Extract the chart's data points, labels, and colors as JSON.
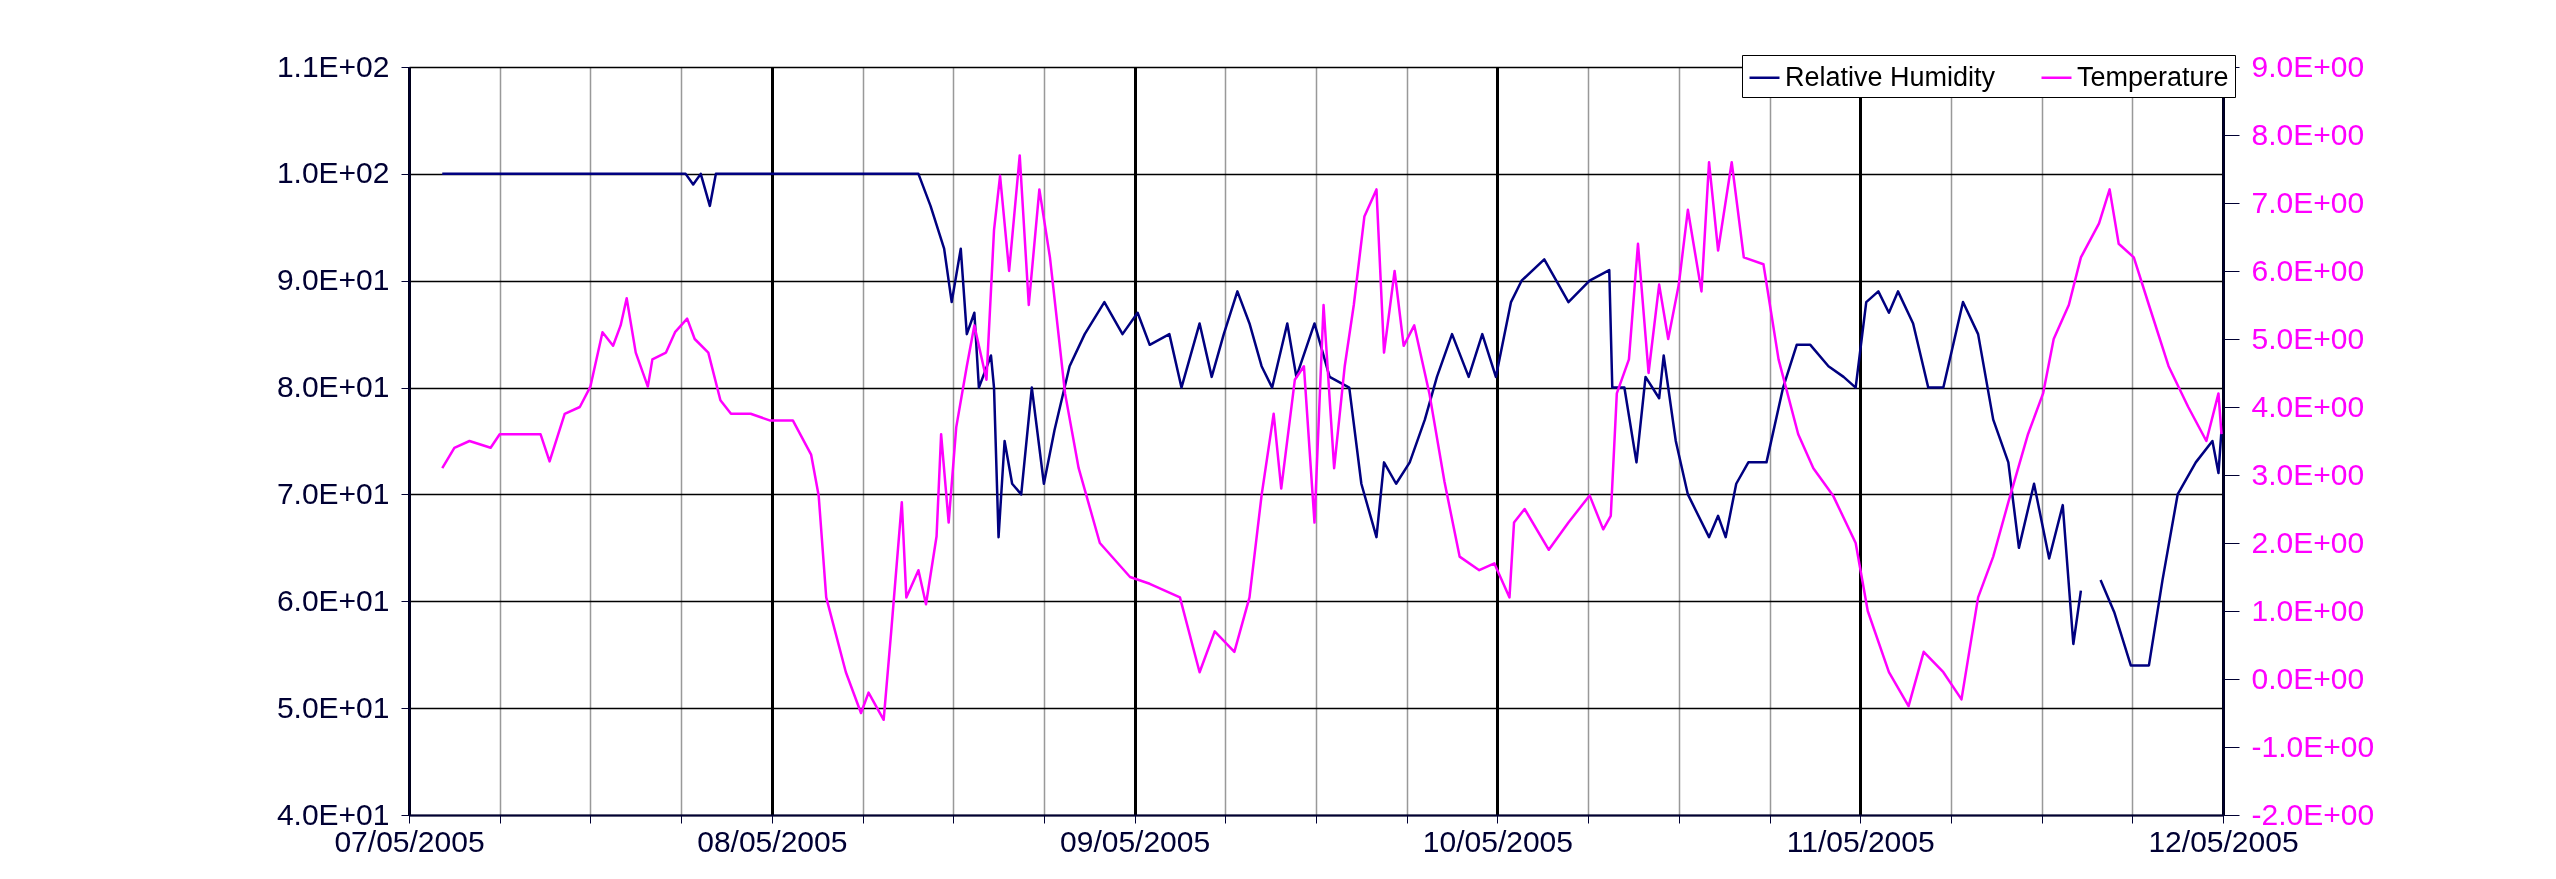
{
  "chart_data": {
    "type": "line",
    "grid": true,
    "legend": "top right",
    "xlim": [
      "2005-05-07",
      "2005-05-12"
    ],
    "xticks": [
      {
        "value": "2005-05-07",
        "label": "07/05/2005"
      },
      {
        "value": "2005-05-07T06:00",
        "label": null
      },
      {
        "value": "2005-05-07T12:00",
        "label": null
      },
      {
        "value": "2005-05-07T18:00",
        "label": null
      },
      {
        "value": "2005-05-08",
        "label": "08/05/2005"
      },
      {
        "value": "2005-05-08T06:00",
        "label": null
      },
      {
        "value": "2005-05-08T12:00",
        "label": null
      },
      {
        "value": "2005-05-08T18:00",
        "label": null
      },
      {
        "value": "2005-05-09",
        "label": "09/05/2005"
      },
      {
        "value": "2005-05-09T06:00",
        "label": null
      },
      {
        "value": "2005-05-09T12:00",
        "label": null
      },
      {
        "value": "2005-05-09T18:00",
        "label": null
      },
      {
        "value": "2005-05-10",
        "label": "10/05/2005"
      },
      {
        "value": "2005-05-10T06:00",
        "label": null
      },
      {
        "value": "2005-05-10T12:00",
        "label": null
      },
      {
        "value": "2005-05-10T18:00",
        "label": null
      },
      {
        "value": "2005-05-11",
        "label": "11/05/2005"
      },
      {
        "value": "2005-05-11T06:00",
        "label": null
      },
      {
        "value": "2005-05-11T12:00",
        "label": null
      },
      {
        "value": "2005-05-11T18:00",
        "label": null
      },
      {
        "value": "2005-05-12",
        "label": "12/05/2005"
      }
    ],
    "ylim": [
      40,
      110
    ],
    "yticks": [
      {
        "value": 40,
        "label": "4.0E+01"
      },
      {
        "value": 50,
        "label": "5.0E+01"
      },
      {
        "value": 60,
        "label": "6.0E+01"
      },
      {
        "value": 70,
        "label": "7.0E+01"
      },
      {
        "value": 80,
        "label": "8.0E+01"
      },
      {
        "value": 90,
        "label": "9.0E+01"
      },
      {
        "value": 100,
        "label": "1.0E+02"
      },
      {
        "value": 110,
        "label": "1.1E+02"
      }
    ],
    "y2lim": [
      -2,
      9
    ],
    "y2ticks": [
      {
        "value": -2,
        "label": "-2.0E+00"
      },
      {
        "value": -1,
        "label": "-1.0E+00"
      },
      {
        "value": 0,
        "label": "0.0E+00"
      },
      {
        "value": 1,
        "label": "1.0E+00"
      },
      {
        "value": 2,
        "label": "2.0E+00"
      },
      {
        "value": 3,
        "label": "3.0E+00"
      },
      {
        "value": 4,
        "label": "4.0E+00"
      },
      {
        "value": 5,
        "label": "5.0E+00"
      },
      {
        "value": 6,
        "label": "6.0E+00"
      },
      {
        "value": 7,
        "label": "7.0E+00"
      },
      {
        "value": 8,
        "label": "8.0E+00"
      },
      {
        "value": 9,
        "label": "9.0E+00"
      }
    ],
    "series": [
      {
        "name": "Relative Humidity",
        "color": "#000080",
        "axis": "y",
        "x": [
          "2005-05-07T02:12",
          "2005-05-07T18:18",
          "2005-05-07T18:48",
          "2005-05-07T19:18",
          "2005-05-07T19:54",
          "2005-05-07T20:18",
          "2005-05-08T09:42",
          "2005-05-08T10:30",
          "2005-05-08T11:24",
          "2005-05-08T11:54",
          "2005-05-08T12:30",
          "2005-05-08T12:54",
          "2005-05-08T13:24",
          "2005-05-08T13:42",
          "2005-05-08T14:30",
          "2005-05-08T14:42",
          "2005-05-08T15:00",
          "2005-05-08T15:24",
          "2005-05-08T15:54",
          "2005-05-08T16:30",
          "2005-05-08T17:12",
          "2005-05-08T18:00",
          "2005-05-08T18:42",
          "2005-05-08T19:42",
          "2005-05-08T20:42",
          "2005-05-08T22:00",
          "2005-05-08T23:12",
          "2005-05-09T00:12",
          "2005-05-09T01:00",
          "2005-05-09T02:18",
          "2005-05-09T03:06",
          "2005-05-09T04:18",
          "2005-05-09T05:06",
          "2005-05-09T05:54",
          "2005-05-09T06:48",
          "2005-05-09T07:36",
          "2005-05-09T08:24",
          "2005-05-09T09:06",
          "2005-05-09T10:06",
          "2005-05-09T10:42",
          "2005-05-09T11:54",
          "2005-05-09T12:54",
          "2005-05-09T14:12",
          "2005-05-09T15:00",
          "2005-05-09T16:00",
          "2005-05-09T16:30",
          "2005-05-09T17:18",
          "2005-05-09T18:12",
          "2005-05-09T19:12",
          "2005-05-09T20:00",
          "2005-05-09T21:00",
          "2005-05-09T22:06",
          "2005-05-09T23:00",
          "2005-05-09T23:54",
          "2005-05-10T00:54",
          "2005-05-10T01:36",
          "2005-05-10T03:06",
          "2005-05-10T04:42",
          "2005-05-10T06:06",
          "2005-05-10T07:24",
          "2005-05-10T07:36",
          "2005-05-10T08:24",
          "2005-05-10T09:12",
          "2005-05-10T09:48",
          "2005-05-10T10:42",
          "2005-05-10T11:00",
          "2005-05-10T11:48",
          "2005-05-10T12:36",
          "2005-05-10T14:00",
          "2005-05-10T14:36",
          "2005-05-10T15:06",
          "2005-05-10T15:48",
          "2005-05-10T16:36",
          "2005-05-10T17:48",
          "2005-05-10T18:54",
          "2005-05-10T19:48",
          "2005-05-10T20:42",
          "2005-05-10T21:54",
          "2005-05-10T22:54",
          "2005-05-10T23:42",
          "2005-05-11T00:24",
          "2005-05-11T01:12",
          "2005-05-11T01:54",
          "2005-05-11T02:30",
          "2005-05-11T03:30",
          "2005-05-11T04:30",
          "2005-05-11T05:30",
          "2005-05-11T06:48",
          "2005-05-11T07:48",
          "2005-05-11T08:48",
          "2005-05-11T09:48",
          "2005-05-11T10:30",
          "2005-05-11T11:30",
          "2005-05-11T12:30",
          "2005-05-11T13:24",
          "2005-05-11T14:06",
          "2005-05-11T14:36",
          "2005-05-11T15:12",
          "2005-05-11T15:54",
          "2005-05-11T16:48",
          "2005-05-11T17:54",
          "2005-05-11T19:06",
          "2005-05-11T20:00",
          "2005-05-11T21:00",
          "2005-05-11T22:12",
          "2005-05-11T23:18",
          "2005-05-11T23:42",
          "2005-05-11T23:54"
        ],
        "values": [
          100,
          100,
          99,
          100,
          97,
          100,
          100,
          97,
          93,
          88,
          93,
          85,
          87,
          80,
          83,
          80,
          66,
          75,
          71,
          70,
          80,
          71,
          76,
          82,
          85,
          88,
          85,
          87,
          84,
          85,
          80,
          86,
          81,
          85,
          89,
          86,
          82,
          80,
          86,
          81,
          86,
          81,
          80,
          71,
          66,
          73,
          71,
          73,
          77,
          81,
          85,
          81,
          85,
          81,
          88,
          90,
          92,
          88,
          90,
          91,
          80,
          80,
          73,
          81,
          79,
          83,
          75,
          70,
          66,
          68,
          66,
          71,
          73,
          73,
          80,
          84,
          84,
          82,
          81,
          80,
          88,
          89,
          87,
          89,
          86,
          80,
          80,
          88,
          85,
          77,
          73,
          65,
          71,
          64,
          69,
          56,
          61,
          null,
          62,
          59,
          54,
          54,
          62,
          70,
          73,
          75,
          72,
          76
        ]
      },
      {
        "name": "Temperature",
        "color": "#ff00ff",
        "axis": "y2",
        "x": [
          "2005-05-07T02:12",
          "2005-05-07T03:00",
          "2005-05-07T04:00",
          "2005-05-07T05:24",
          "2005-05-07T06:00",
          "2005-05-07T08:00",
          "2005-05-07T08:42",
          "2005-05-07T09:18",
          "2005-05-07T10:18",
          "2005-05-07T11:18",
          "2005-05-07T12:00",
          "2005-05-07T12:48",
          "2005-05-07T13:30",
          "2005-05-07T14:00",
          "2005-05-07T14:24",
          "2005-05-07T15:00",
          "2005-05-07T15:48",
          "2005-05-07T16:06",
          "2005-05-07T17:00",
          "2005-05-07T17:36",
          "2005-05-07T18:24",
          "2005-05-07T18:54",
          "2005-05-07T19:48",
          "2005-05-07T20:36",
          "2005-05-07T21:18",
          "2005-05-07T22:36",
          "2005-05-07T23:54",
          "2005-05-08T01:24",
          "2005-05-08T02:36",
          "2005-05-08T03:06",
          "2005-05-08T03:36",
          "2005-05-08T04:54",
          "2005-05-08T05:54",
          "2005-05-08T06:24",
          "2005-05-08T07:24",
          "2005-05-08T07:54",
          "2005-05-08T08:36",
          "2005-05-08T08:54",
          "2005-05-08T09:42",
          "2005-05-08T10:12",
          "2005-05-08T10:54",
          "2005-05-08T11:12",
          "2005-05-08T11:42",
          "2005-05-08T12:12",
          "2005-05-08T12:54",
          "2005-05-08T13:24",
          "2005-05-08T14:12",
          "2005-05-08T14:42",
          "2005-05-08T15:06",
          "2005-05-08T15:42",
          "2005-05-08T16:24",
          "2005-05-08T17:00",
          "2005-05-08T17:42",
          "2005-05-08T18:24",
          "2005-05-08T19:24",
          "2005-05-08T20:18",
          "2005-05-08T21:42",
          "2005-05-08T23:42",
          "2005-05-09T01:00",
          "2005-05-09T03:00",
          "2005-05-09T04:18",
          "2005-05-09T05:18",
          "2005-05-09T06:36",
          "2005-05-09T07:36",
          "2005-05-09T08:24",
          "2005-05-09T09:12",
          "2005-05-09T09:42",
          "2005-05-09T10:36",
          "2005-05-09T11:12",
          "2005-05-09T11:54",
          "2005-05-09T12:30",
          "2005-05-09T13:12",
          "2005-05-09T13:54",
          "2005-05-09T14:30",
          "2005-05-09T15:12",
          "2005-05-09T16:00",
          "2005-05-09T16:30",
          "2005-05-09T17:12",
          "2005-05-09T17:48",
          "2005-05-09T18:30",
          "2005-05-09T19:30",
          "2005-05-09T20:30",
          "2005-05-09T21:30",
          "2005-05-09T22:48",
          "2005-05-09T23:48",
          "2005-05-10T00:48",
          "2005-05-10T01:06",
          "2005-05-10T01:48",
          "2005-05-10T03:24",
          "2005-05-10T04:42",
          "2005-05-10T06:06",
          "2005-05-10T07:00",
          "2005-05-10T07:30",
          "2005-05-10T07:54",
          "2005-05-10T08:42",
          "2005-05-10T09:18",
          "2005-05-10T10:00",
          "2005-05-10T10:42",
          "2005-05-10T11:18",
          "2005-05-10T12:00",
          "2005-05-10T12:36",
          "2005-05-10T13:30",
          "2005-05-10T14:00",
          "2005-05-10T14:36",
          "2005-05-10T15:30",
          "2005-05-10T16:18",
          "2005-05-10T17:36",
          "2005-05-10T18:36",
          "2005-05-10T19:54",
          "2005-05-10T20:54",
          "2005-05-10T22:12",
          "2005-05-10T23:42",
          "2005-05-11T00:30",
          "2005-05-11T01:54",
          "2005-05-11T03:12",
          "2005-05-11T04:12",
          "2005-05-11T05:30",
          "2005-05-11T06:42",
          "2005-05-11T07:48",
          "2005-05-11T08:48",
          "2005-05-11T09:48",
          "2005-05-11T11:06",
          "2005-05-11T12:06",
          "2005-05-11T12:48",
          "2005-05-11T13:48",
          "2005-05-11T14:36",
          "2005-05-11T15:48",
          "2005-05-11T16:30",
          "2005-05-11T17:06",
          "2005-05-11T18:06",
          "2005-05-11T19:06",
          "2005-05-11T20:24",
          "2005-05-11T21:42",
          "2005-05-11T22:54",
          "2005-05-11T23:42",
          "2005-05-11T23:54"
        ],
        "values": [
          3.1,
          3.4,
          3.5,
          3.4,
          3.6,
          3.6,
          3.6,
          3.2,
          3.9,
          4.0,
          4.3,
          5.1,
          4.9,
          5.2,
          5.6,
          4.8,
          4.3,
          4.7,
          4.8,
          5.1,
          5.3,
          5.0,
          4.8,
          4.1,
          3.9,
          3.9,
          3.8,
          3.8,
          3.3,
          2.7,
          1.2,
          0.1,
          -0.5,
          -0.2,
          -0.6,
          0.7,
          2.6,
          1.2,
          1.6,
          1.1,
          2.1,
          3.6,
          2.3,
          3.7,
          4.6,
          5.2,
          4.4,
          6.6,
          7.4,
          6.0,
          7.7,
          5.5,
          7.2,
          6.2,
          4.2,
          3.1,
          2.0,
          1.5,
          1.4,
          1.2,
          0.1,
          0.7,
          0.4,
          1.2,
          2.7,
          3.9,
          2.8,
          4.4,
          4.6,
          2.3,
          5.5,
          3.1,
          4.6,
          5.5,
          6.8,
          7.2,
          4.8,
          6.0,
          4.9,
          5.2,
          4.2,
          2.9,
          1.8,
          1.6,
          1.7,
          1.2,
          2.3,
          2.5,
          1.9,
          2.3,
          2.7,
          2.2,
          2.4,
          4.2,
          4.7,
          6.4,
          4.5,
          5.8,
          5.0,
          5.8,
          6.9,
          5.7,
          7.6,
          6.3,
          7.6,
          6.2,
          6.1,
          4.7,
          3.6,
          3.1,
          2.7,
          2.0,
          1.0,
          0.1,
          -0.4,
          0.4,
          0.1,
          -0.3,
          1.2,
          1.8,
          2.6,
          3.6,
          4.2,
          5.0,
          5.5,
          6.2,
          6.7,
          7.2,
          6.4,
          6.2,
          5.5,
          4.6,
          4.0,
          3.5,
          4.2,
          3.6
        ]
      }
    ]
  }
}
